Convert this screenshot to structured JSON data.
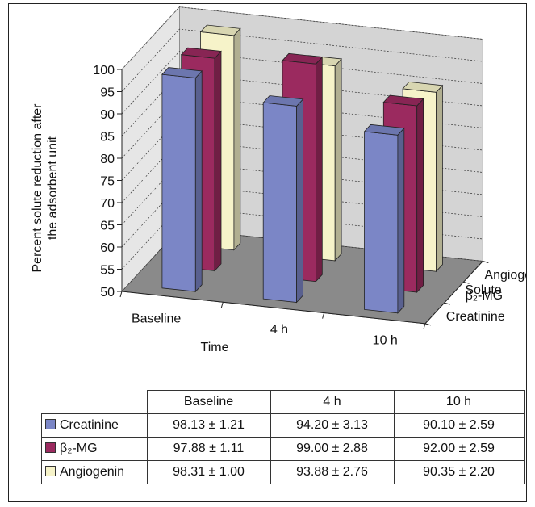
{
  "chart_data": {
    "type": "bar",
    "subtype": "3d-clustered-column",
    "categories": [
      "Baseline",
      "4 h",
      "10 h"
    ],
    "series": [
      {
        "name": "Creatinine",
        "color": "#7b86c6",
        "values": [
          98.13,
          94.2,
          90.1
        ],
        "labels": [
          "98.13 ± 1.21",
          "94.20 ± 3.13",
          "90.10 ± 2.59"
        ]
      },
      {
        "name": "β₂-MG",
        "color": "#9b2a5f",
        "values": [
          97.88,
          99.0,
          92.0
        ],
        "labels": [
          "97.88 ± 1.11",
          "99.00 ± 2.88",
          "92.00 ± 2.59"
        ]
      },
      {
        "name": "Angiogenin",
        "color": "#f6f3c9",
        "values": [
          98.31,
          93.88,
          90.35
        ],
        "labels": [
          "98.31 ± 1.00",
          "93.88 ± 2.76",
          "90.35 ± 2.20"
        ]
      }
    ],
    "ylim": [
      50,
      100
    ],
    "yticks": [
      50,
      55,
      60,
      65,
      70,
      75,
      80,
      85,
      90,
      95,
      100
    ],
    "ylabel_line1": "Percent solute reduction after",
    "ylabel_line2": "the adsorbent unit",
    "xlabel": "Time",
    "zlabel": "Solute",
    "grid": true,
    "legend": "data-table"
  }
}
